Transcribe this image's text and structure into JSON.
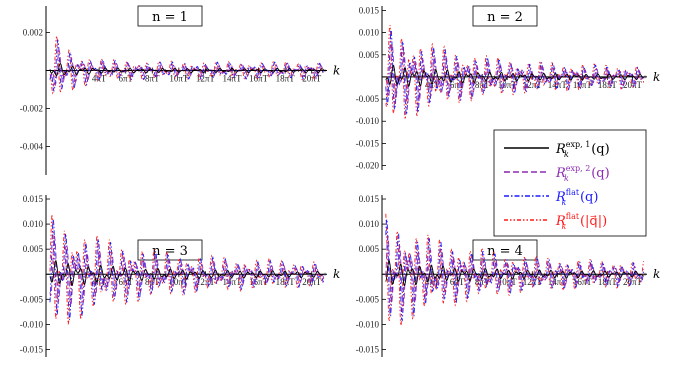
{
  "chart_data": [
    {
      "type": "line",
      "title": "n = 1",
      "xlabel": "k",
      "ylabel": "",
      "x_tick_labels": [
        "4πT",
        "6πT",
        "8πT",
        "10πT",
        "12πT",
        "14πT",
        "16πT",
        "18πT",
        "20πT"
      ],
      "xlim": [
        0,
        21
      ],
      "ylim": [
        -0.0055,
        0.0034
      ],
      "y_ticks": [
        0.002,
        0,
        -0.002,
        -0.004
      ],
      "y_tick_labels": [
        "0.002",
        "",
        "-0.002",
        "-0.004"
      ],
      "amplitude": 0.0025
    },
    {
      "type": "line",
      "title": "n = 2",
      "xlabel": "k",
      "ylabel": "",
      "x_tick_labels": [
        "4πT",
        "6πT",
        "8πT",
        "10πT",
        "12πT",
        "14πT",
        "16πT",
        "18πT",
        "20πT"
      ],
      "xlim": [
        0,
        21
      ],
      "ylim": [
        -0.021,
        0.016
      ],
      "y_ticks": [
        0.015,
        0.01,
        0.005,
        0,
        -0.005,
        -0.01,
        -0.015,
        -0.02
      ],
      "y_tick_labels": [
        "0.015",
        "0.010",
        "0.005",
        "",
        "-0.005",
        "-0.010",
        "-0.015",
        "-0.020"
      ],
      "amplitude": 0.012
    },
    {
      "type": "line",
      "title": "n = 3",
      "xlabel": "k",
      "ylabel": "",
      "x_tick_labels": [
        "4πT",
        "6πT",
        "8πT",
        "10πT",
        "12πT",
        "14πT",
        "16πT",
        "18πT",
        "20πT"
      ],
      "xlim": [
        0,
        21
      ],
      "ylim": [
        -0.0165,
        0.0158
      ],
      "y_ticks": [
        0.015,
        0.01,
        0.005,
        0,
        -0.005,
        -0.01,
        -0.015
      ],
      "y_tick_labels": [
        "0.015",
        "0.010",
        "0.005",
        "",
        "-0.005",
        "-0.010",
        "-0.015"
      ],
      "amplitude": 0.012
    },
    {
      "type": "line",
      "title": "n = 4",
      "xlabel": "k",
      "ylabel": "",
      "x_tick_labels": [
        "4πT",
        "6πT",
        "8πT",
        "10πT",
        "12πT",
        "14πT",
        "16πT",
        "18πT",
        "20πT"
      ],
      "xlim": [
        0,
        21
      ],
      "ylim": [
        -0.0165,
        0.0158
      ],
      "y_ticks": [
        0.015,
        0.01,
        0.005,
        0,
        -0.005,
        -0.01,
        -0.015
      ],
      "y_tick_labels": [
        "0.015",
        "0.010",
        "0.005",
        "",
        "-0.005",
        "-0.010",
        "-0.015"
      ],
      "amplitude": 0.012
    }
  ],
  "legend": {
    "placement": "right-middle",
    "entries": [
      {
        "base": "R",
        "sub": "k",
        "sup": "exp, 1",
        "arg": "(q)",
        "color": "#000000",
        "dash": "solid"
      },
      {
        "base": "R",
        "sub": "k",
        "sup": "exp, 2",
        "arg": "(q)",
        "color": "#8e2bb0",
        "dash": "dashed"
      },
      {
        "base": "R",
        "sub": "k",
        "sup": "flat",
        "arg": "(q)",
        "color": "#1a1aff",
        "dash": "dash-dot"
      },
      {
        "base": "R",
        "sub": "k",
        "sup": "flat",
        "arg": "(|q⃗|)",
        "color": "#ff1a1a",
        "dash": "dash-dot-dot"
      }
    ]
  },
  "colors": {
    "series1": "#000000",
    "series2": "#8e2bb0",
    "series3": "#1a1aff",
    "series4": "#ff1a1a"
  }
}
